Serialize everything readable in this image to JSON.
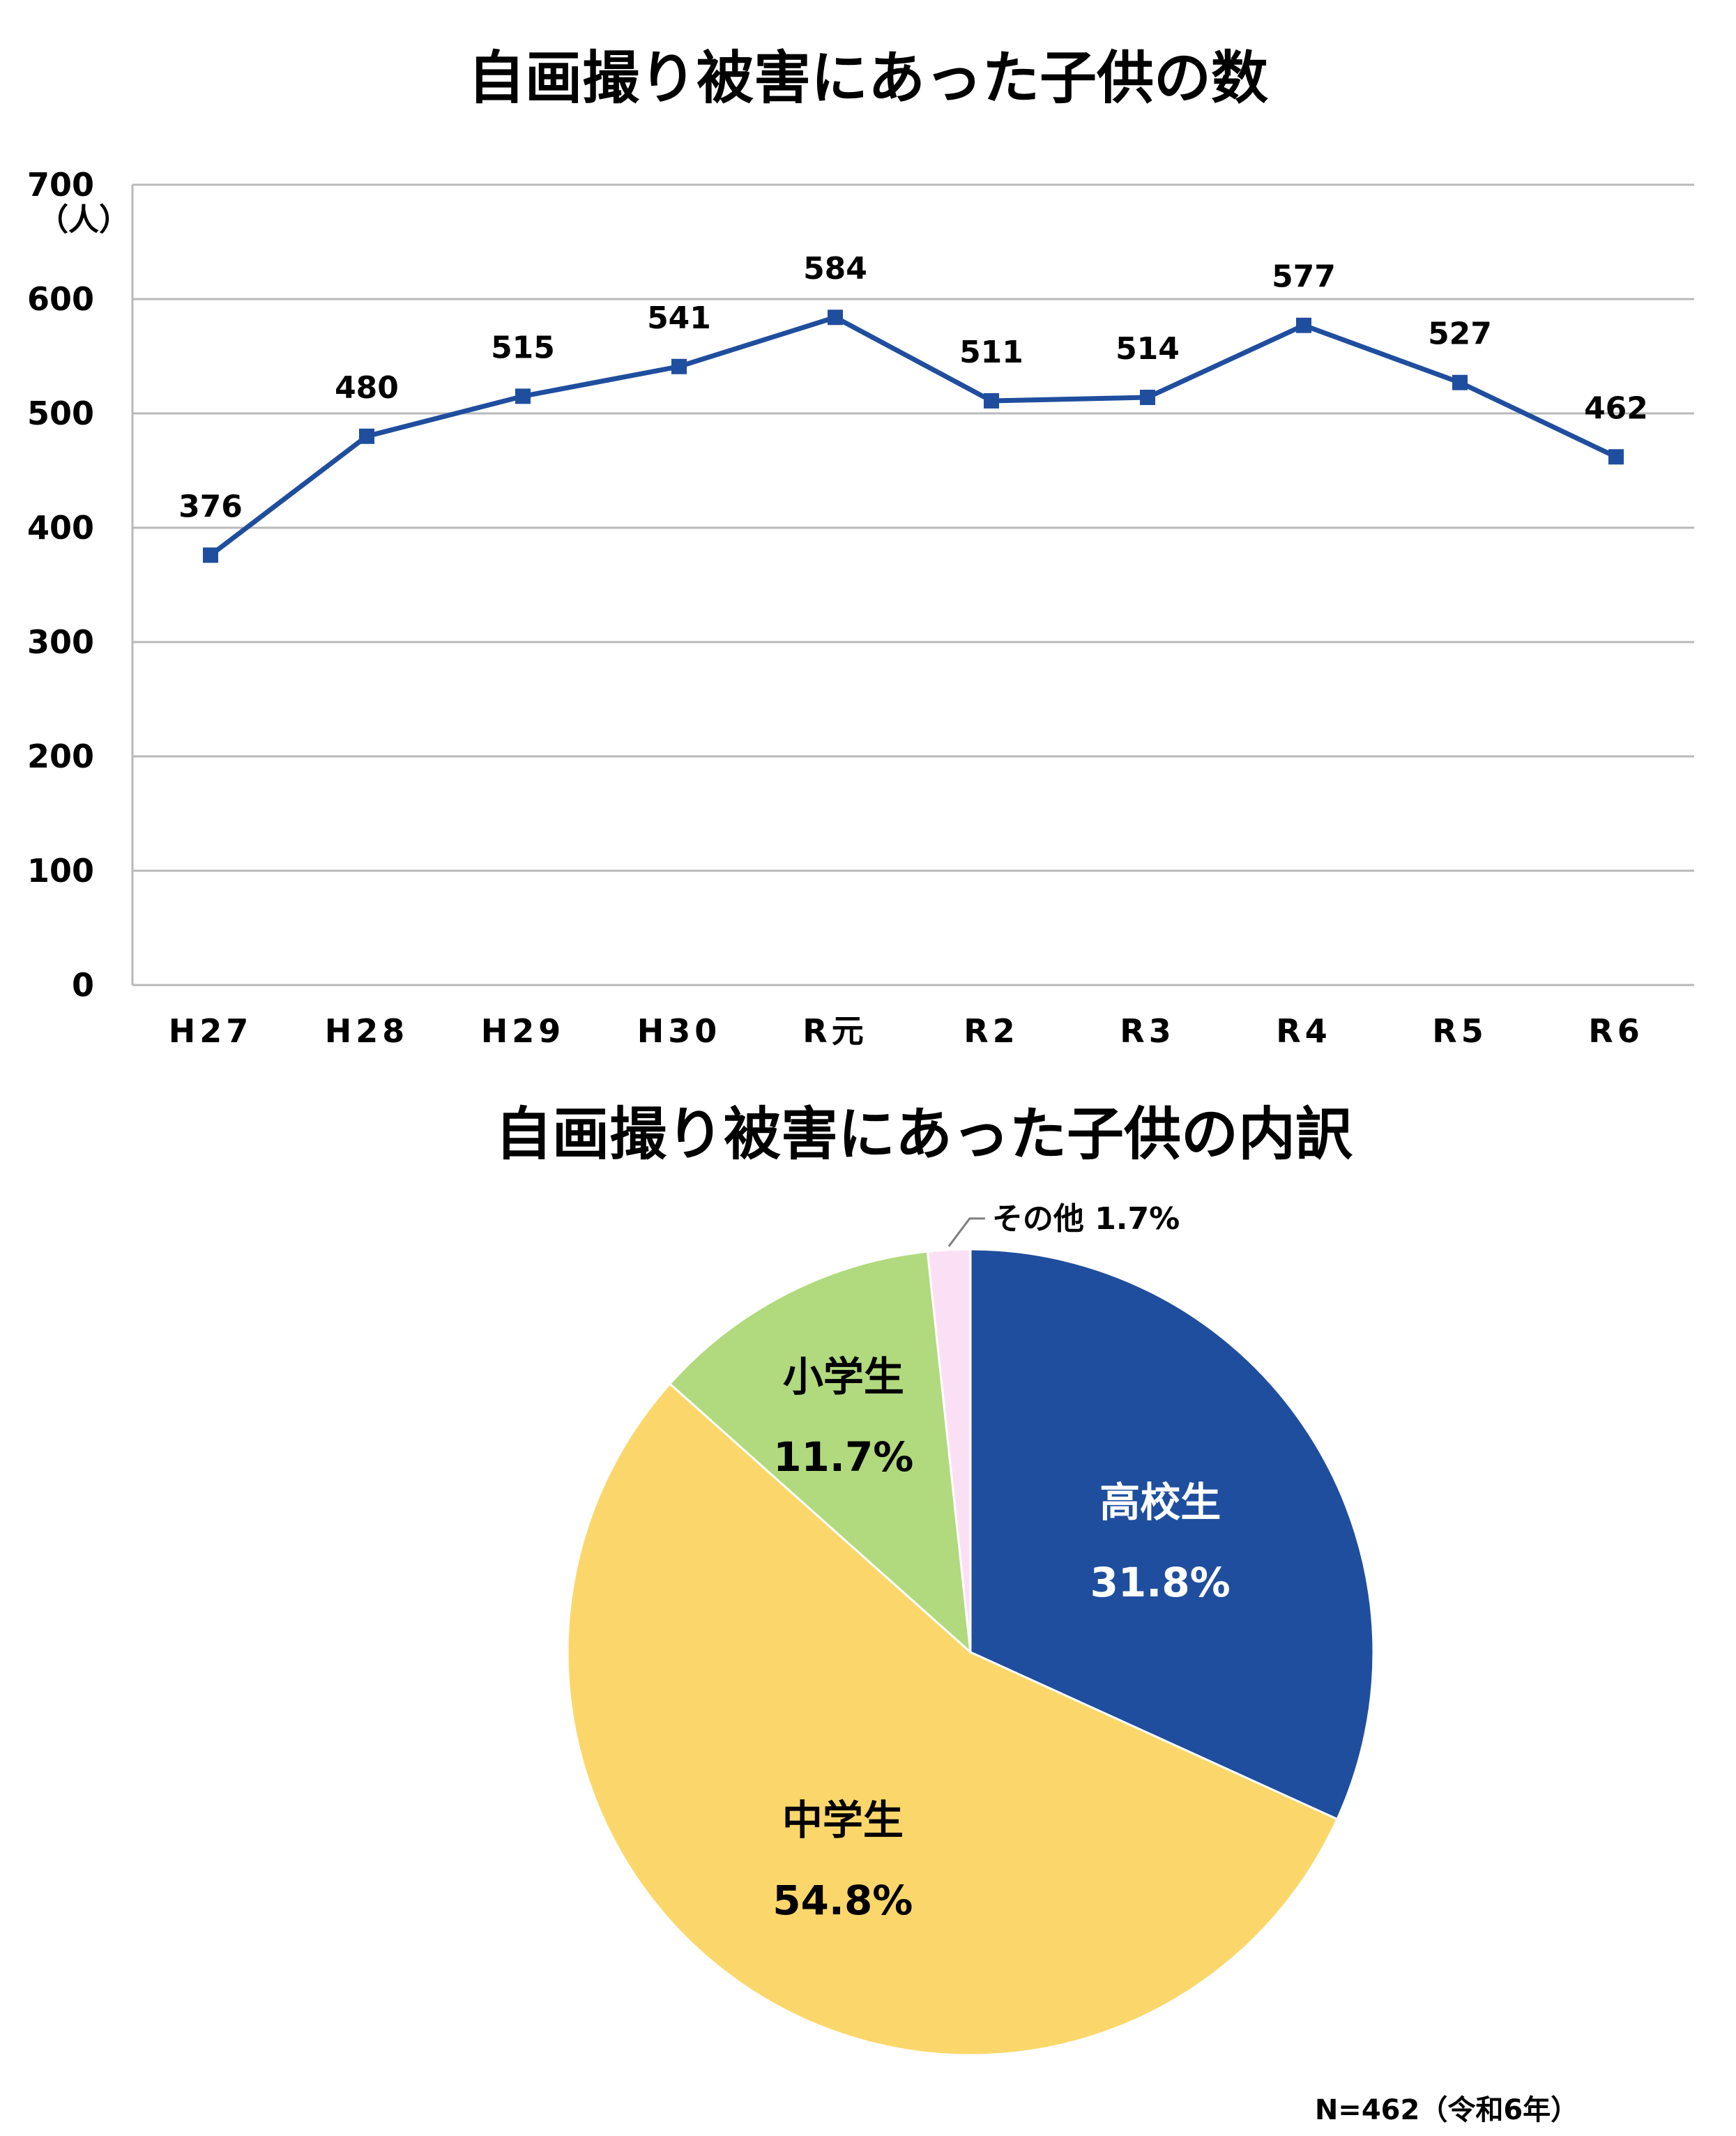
{
  "chart_data": [
    {
      "type": "line",
      "title": "自画撮り被害にあった子供の数",
      "y_unit_label": "（人）",
      "ylim": [
        0,
        700
      ],
      "yticks": [
        0,
        100,
        200,
        300,
        400,
        500,
        600,
        700
      ],
      "categories": [
        "H27",
        "H28",
        "H29",
        "H30",
        "R元",
        "R2",
        "R3",
        "R4",
        "R5",
        "R6"
      ],
      "series": [
        {
          "values": [
            376,
            480,
            515,
            541,
            584,
            511,
            514,
            577,
            527,
            462
          ]
        }
      ],
      "grid": true,
      "line_color": "#1f4e9e"
    },
    {
      "type": "pie",
      "title": "自画撮り被害にあった子供の内訳",
      "slices": [
        {
          "label": "高校生",
          "value": 31.8,
          "value_text": "31.8%",
          "color": "#1f4e9e",
          "label_color": "#ffffff"
        },
        {
          "label": "中学生",
          "value": 54.8,
          "value_text": "54.8%",
          "color": "#fbd76b",
          "label_color": "#000000"
        },
        {
          "label": "小学生",
          "value": 11.7,
          "value_text": "11.7%",
          "color": "#b1d97e",
          "label_color": "#000000"
        },
        {
          "label": "その他",
          "value": 1.7,
          "value_text": "1.7%",
          "color": "#fbe0f5",
          "label_color": "#000000"
        }
      ],
      "note": "N=462（令和6年）"
    }
  ]
}
